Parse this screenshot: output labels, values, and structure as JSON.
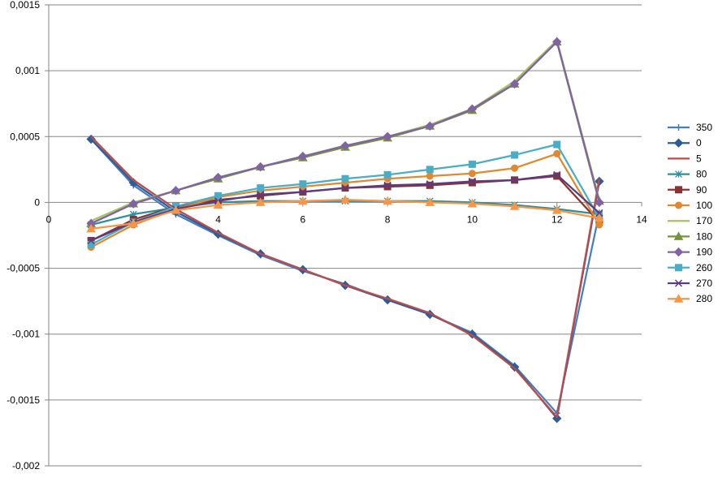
{
  "chart_data": {
    "type": "line",
    "title": "",
    "xlabel": "",
    "ylabel": "",
    "xlim": [
      0,
      14
    ],
    "ylim": [
      -0.002,
      0.0015
    ],
    "x_ticks": [
      0,
      2,
      4,
      6,
      8,
      10,
      12,
      14
    ],
    "x_tick_labels": [
      "0",
      "2",
      "4",
      "6",
      "8",
      "10",
      "12",
      "14"
    ],
    "y_ticks": [
      0.0015,
      0.001,
      0.0005,
      0,
      -0.0005,
      -0.001,
      -0.0015,
      -0.002
    ],
    "y_tick_labels": [
      "0,0015",
      "0,001",
      "0,0005",
      "0",
      "-0,0005",
      "-0,001",
      "-0,0015",
      "-0,002"
    ],
    "grid": "horizontal",
    "legend_position": "right",
    "x": [
      1,
      2,
      3,
      4,
      5,
      6,
      7,
      8,
      9,
      10,
      11,
      12,
      13
    ],
    "series": [
      {
        "name": "350",
        "color": "#4a7ebb",
        "marker": "plus",
        "values": [
          0.00048,
          0.00013,
          -9e-05,
          -0.00025,
          -0.0004,
          -0.00052,
          -0.00062,
          -0.00074,
          -0.00085,
          -0.00099,
          -0.00124,
          -0.0016,
          -8e-05
        ]
      },
      {
        "name": "0",
        "color": "#2c5d9a",
        "marker": "diamond",
        "values": [
          0.00048,
          0.00015,
          -7e-05,
          -0.00024,
          -0.00039,
          -0.00051,
          -0.00063,
          -0.00074,
          -0.00085,
          -0.001,
          -0.00125,
          -0.00164,
          0.00016
        ]
      },
      {
        "name": "5",
        "color": "#be4b48",
        "marker": "none",
        "values": [
          0.0005,
          0.00017,
          -5e-05,
          -0.00023,
          -0.00039,
          -0.00051,
          -0.00063,
          -0.00073,
          -0.00084,
          -0.00101,
          -0.00126,
          -0.00163,
          0.00018
        ]
      },
      {
        "name": "80",
        "color": "#2a8f9e",
        "marker": "star",
        "values": [
          -0.00017,
          -9e-05,
          -4e-05,
          0.0,
          1e-05,
          1e-05,
          1e-05,
          1e-05,
          1e-05,
          0.0,
          -2e-05,
          -5e-05,
          -9e-05
        ]
      },
      {
        "name": "90",
        "color": "#8b3232",
        "marker": "square",
        "values": [
          -0.00029,
          -0.00013,
          -3e-05,
          2e-05,
          5e-05,
          8e-05,
          0.00011,
          0.00012,
          0.00013,
          0.00015,
          0.00017,
          0.0002,
          -0.00015
        ]
      },
      {
        "name": "100",
        "color": "#e0892e",
        "marker": "circle",
        "values": [
          -0.00034,
          -0.00017,
          -5e-05,
          4e-05,
          9e-05,
          0.00012,
          0.00015,
          0.00018,
          0.0002,
          0.00022,
          0.00026,
          0.00037,
          -0.00017
        ]
      },
      {
        "name": "170",
        "color": "#a8c163",
        "marker": "none",
        "values": [
          -0.00014,
          0.0,
          9e-05,
          0.00018,
          0.00027,
          0.00035,
          0.00043,
          0.0005,
          0.00059,
          0.00071,
          0.00092,
          0.00123,
          2e-05
        ]
      },
      {
        "name": "180",
        "color": "#77923c",
        "marker": "triangle",
        "values": [
          -0.00016,
          -1e-05,
          9e-05,
          0.00018,
          0.00027,
          0.00034,
          0.00042,
          0.00049,
          0.00058,
          0.0007,
          0.0009,
          0.00122,
          1e-05
        ]
      },
      {
        "name": "190",
        "color": "#8064a2",
        "marker": "diamond",
        "values": [
          -0.00016,
          -1e-05,
          9e-05,
          0.00019,
          0.00027,
          0.00035,
          0.00043,
          0.0005,
          0.00058,
          0.00071,
          0.0009,
          0.00122,
          0.0
        ]
      },
      {
        "name": "260",
        "color": "#4bacc6",
        "marker": "square",
        "values": [
          -0.00032,
          -0.00015,
          -3e-05,
          5e-05,
          0.00011,
          0.00014,
          0.00018,
          0.00021,
          0.00025,
          0.00029,
          0.00036,
          0.00044,
          -0.00012
        ]
      },
      {
        "name": "270",
        "color": "#5c3b80",
        "marker": "x",
        "values": [
          -0.00029,
          -0.00015,
          -5e-05,
          1e-05,
          6e-05,
          8e-05,
          0.00011,
          0.00013,
          0.00014,
          0.00016,
          0.00017,
          0.00021,
          -8e-05
        ]
      },
      {
        "name": "280",
        "color": "#f79646",
        "marker": "triangle",
        "values": [
          -0.0002,
          -0.00016,
          -6e-05,
          -2e-05,
          0.0,
          1e-05,
          2e-05,
          1e-05,
          0.0,
          -1e-05,
          -3e-05,
          -6e-05,
          -0.00012
        ]
      }
    ]
  }
}
